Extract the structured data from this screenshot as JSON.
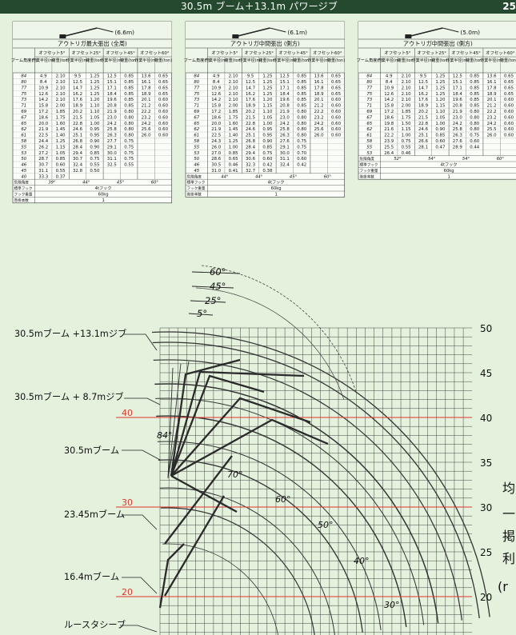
{
  "header": {
    "title": "30.5m ブーム＋13.1m パワージブ",
    "page_number": "25"
  },
  "tables": [
    {
      "title": "アウトリガ最大張出 (全周)",
      "jib_label": "(6.6m)",
      "offset_headers": [
        "オフセット5°",
        "オフセット25°",
        "オフセット45°",
        "オフセット60°"
      ],
      "angle_header": "ブーム角度(°)",
      "rows": [
        [
          "84",
          "4.9",
          "2.10",
          "9.5",
          "1.25",
          "12.5",
          "0.85",
          "13.6",
          "0.65"
        ],
        [
          "80",
          "8.4",
          "2.10",
          "12.5",
          "1.25",
          "15.1",
          "0.85",
          "16.1",
          "0.65"
        ],
        [
          "77",
          "10.9",
          "2.10",
          "14.7",
          "1.25",
          "17.1",
          "0.85",
          "17.8",
          "0.65"
        ],
        [
          "75",
          "12.6",
          "2.10",
          "16.2",
          "1.25",
          "18.4",
          "0.85",
          "18.9",
          "0.65"
        ],
        [
          "73",
          "14.2",
          "2.10",
          "17.6",
          "1.20",
          "19.6",
          "0.85",
          "20.1",
          "0.60"
        ],
        [
          "71",
          "15.8",
          "2.00",
          "18.9",
          "1.10",
          "20.8",
          "0.85",
          "21.2",
          "0.60"
        ],
        [
          "69",
          "17.2",
          "1.85",
          "20.2",
          "1.10",
          "21.9",
          "0.80",
          "22.2",
          "0.60"
        ],
        [
          "67",
          "18.6",
          "1.75",
          "21.5",
          "1.05",
          "23.0",
          "0.80",
          "23.2",
          "0.60"
        ],
        [
          "65",
          "20.0",
          "1.60",
          "22.8",
          "1.00",
          "24.2",
          "0.80",
          "24.2",
          "0.60"
        ],
        [
          "62",
          "21.9",
          "1.45",
          "24.6",
          "0.95",
          "25.8",
          "0.80",
          "25.6",
          "0.60"
        ],
        [
          "61",
          "22.5",
          "1.40",
          "25.1",
          "0.95",
          "26.3",
          "0.80",
          "26.0",
          "0.60"
        ],
        [
          "58",
          "24.4",
          "1.25",
          "26.8",
          "0.90",
          "27.7",
          "0.75",
          "",
          ""
        ],
        [
          "55",
          "26.2",
          "1.15",
          "28.4",
          "0.90",
          "29.1",
          "0.75",
          "",
          ""
        ],
        [
          "53",
          "27.2",
          "1.05",
          "29.4",
          "0.85",
          "30.0",
          "0.75",
          "",
          ""
        ],
        [
          "50",
          "28.7",
          "0.85",
          "30.7",
          "0.75",
          "31.1",
          "0.75",
          "",
          ""
        ],
        [
          "46",
          "30.7",
          "0.60",
          "32.4",
          "0.55",
          "32.5",
          "0.55",
          "",
          ""
        ],
        [
          "45",
          "31.1",
          "0.55",
          "32.8",
          "0.50",
          "",
          "",
          "",
          ""
        ],
        [
          "40",
          "33.3",
          "0.37",
          "",
          "",
          "",
          "",
          "",
          ""
        ]
      ],
      "limit_angles": [
        "39°",
        "44°",
        "45°",
        "60°"
      ],
      "hook": "4tフック",
      "hook_mass": "60kg",
      "line_count": "1"
    },
    {
      "title": "アウトリガ中間張出 (側方)",
      "jib_label": "(6.1m)",
      "offset_headers": [
        "オフセット5°",
        "オフセット25°",
        "オフセット45°",
        "オフセット60°"
      ],
      "angle_header": "ブーム角度(°)",
      "rows": [
        [
          "84",
          "4.9",
          "2.10",
          "9.5",
          "1.25",
          "12.5",
          "0.85",
          "13.6",
          "0.65"
        ],
        [
          "80",
          "8.4",
          "2.10",
          "12.5",
          "1.25",
          "15.1",
          "0.85",
          "16.1",
          "0.65"
        ],
        [
          "77",
          "10.9",
          "2.10",
          "14.7",
          "1.25",
          "17.1",
          "0.85",
          "17.8",
          "0.65"
        ],
        [
          "75",
          "12.6",
          "2.10",
          "16.2",
          "1.25",
          "18.4",
          "0.85",
          "18.9",
          "0.65"
        ],
        [
          "73",
          "14.2",
          "2.10",
          "17.6",
          "1.20",
          "19.6",
          "0.85",
          "20.1",
          "0.60"
        ],
        [
          "71",
          "15.8",
          "2.00",
          "18.9",
          "1.15",
          "20.8",
          "0.85",
          "21.2",
          "0.60"
        ],
        [
          "69",
          "17.2",
          "1.85",
          "20.2",
          "1.10",
          "21.9",
          "0.80",
          "22.2",
          "0.60"
        ],
        [
          "67",
          "18.6",
          "1.75",
          "21.5",
          "1.05",
          "23.0",
          "0.80",
          "23.2",
          "0.60"
        ],
        [
          "65",
          "20.0",
          "1.60",
          "22.8",
          "1.00",
          "24.2",
          "0.80",
          "24.2",
          "0.60"
        ],
        [
          "62",
          "21.9",
          "1.45",
          "24.6",
          "0.95",
          "25.8",
          "0.80",
          "25.6",
          "0.60"
        ],
        [
          "61",
          "22.5",
          "1.40",
          "25.1",
          "0.95",
          "26.3",
          "0.80",
          "26.0",
          "0.60"
        ],
        [
          "58",
          "24.3",
          "1.25",
          "26.8",
          "0.90",
          "27.6",
          "0.75",
          "",
          ""
        ],
        [
          "55",
          "26.0",
          "1.00",
          "28.4",
          "0.85",
          "29.1",
          "0.75",
          "",
          ""
        ],
        [
          "53",
          "27.0",
          "0.85",
          "29.4",
          "0.75",
          "30.0",
          "0.70",
          "",
          ""
        ],
        [
          "50",
          "28.6",
          "0.65",
          "30.6",
          "0.60",
          "31.1",
          "0.60",
          "",
          ""
        ],
        [
          "46",
          "30.5",
          "0.46",
          "32.3",
          "0.42",
          "32.4",
          "0.42",
          "",
          ""
        ],
        [
          "45",
          "31.0",
          "0.41",
          "32.7",
          "0.38",
          "",
          "",
          "",
          ""
        ]
      ],
      "limit_angles": [
        "44°",
        "44°",
        "45°",
        "60°"
      ],
      "hook": "4tフック",
      "hook_mass": "60kg",
      "line_count": "1"
    },
    {
      "title": "アウトリガ中間張出 (側方)",
      "jib_label": "(5.0m)",
      "offset_headers": [
        "オフセット5°",
        "オフセット25°",
        "オフセット45°",
        "オフセット60°"
      ],
      "angle_header": "ブーム角度(°)",
      "rows": [
        [
          "84",
          "4.9",
          "2.10",
          "9.5",
          "1.25",
          "12.5",
          "0.85",
          "13.6",
          "0.65"
        ],
        [
          "80",
          "8.4",
          "2.10",
          "12.5",
          "1.25",
          "15.1",
          "0.85",
          "16.1",
          "0.65"
        ],
        [
          "77",
          "10.9",
          "2.10",
          "14.7",
          "1.25",
          "17.1",
          "0.85",
          "17.8",
          "0.65"
        ],
        [
          "75",
          "12.6",
          "2.10",
          "16.2",
          "1.25",
          "18.4",
          "0.85",
          "18.9",
          "0.65"
        ],
        [
          "73",
          "14.2",
          "2.10",
          "17.6",
          "1.20",
          "19.6",
          "0.85",
          "20.1",
          "0.60"
        ],
        [
          "71",
          "15.8",
          "2.00",
          "18.9",
          "1.15",
          "20.8",
          "0.85",
          "21.2",
          "0.60"
        ],
        [
          "69",
          "17.2",
          "1.85",
          "20.2",
          "1.10",
          "21.9",
          "0.80",
          "22.2",
          "0.60"
        ],
        [
          "67",
          "18.6",
          "1.75",
          "21.5",
          "1.05",
          "23.0",
          "0.80",
          "23.2",
          "0.60"
        ],
        [
          "65",
          "19.8",
          "1.50",
          "22.8",
          "1.00",
          "24.2",
          "0.80",
          "24.2",
          "0.60"
        ],
        [
          "62",
          "21.6",
          "1.15",
          "24.6",
          "0.90",
          "25.8",
          "0.80",
          "25.5",
          "0.60"
        ],
        [
          "61",
          "22.2",
          "1.00",
          "25.1",
          "0.85",
          "26.3",
          "0.75",
          "26.0",
          "0.60"
        ],
        [
          "58",
          "23.9",
          "0.75",
          "26.6",
          "0.60",
          "27.6",
          "0.60",
          "",
          ""
        ],
        [
          "55",
          "25.5",
          "0.55",
          "28.1",
          "0.47",
          "28.9",
          "0.44",
          "",
          ""
        ],
        [
          "53",
          "26.4",
          "0.46",
          "",
          "",
          "",
          "",
          "",
          ""
        ]
      ],
      "limit_angles": [
        "52°",
        "54°",
        "54°",
        "60°"
      ],
      "hook": "4tフック",
      "hook_mass": "60kg",
      "line_count": "1"
    }
  ],
  "table_labels": {
    "radius": "作業半径(m)",
    "load": "荷重(ton)",
    "limit": "危険角度",
    "hook": "標準フック",
    "hook_mass": "フック重量",
    "lines": "巻掛本数"
  },
  "diagram": {
    "y_ticks": [
      "50",
      "45",
      "40",
      "35",
      "30",
      "25",
      "20"
    ],
    "boom_labels": [
      "30.5mブーム +13.1mジブ",
      "30.5mブーム + 8.7mジブ",
      "30.5mブーム",
      "23.45mブーム",
      "16.4mブーム",
      "ルースタシーブ"
    ],
    "red_markers": [
      "40",
      "30",
      "20"
    ],
    "offset_angles": [
      "60°",
      "45°",
      "25°",
      "5°"
    ],
    "boom_angles": [
      "84°",
      "70°",
      "60°",
      "50°",
      "40°",
      "30°"
    ],
    "right_edge_glyphs": [
      "均",
      "一",
      "掲",
      "利",
      "(r"
    ]
  }
}
